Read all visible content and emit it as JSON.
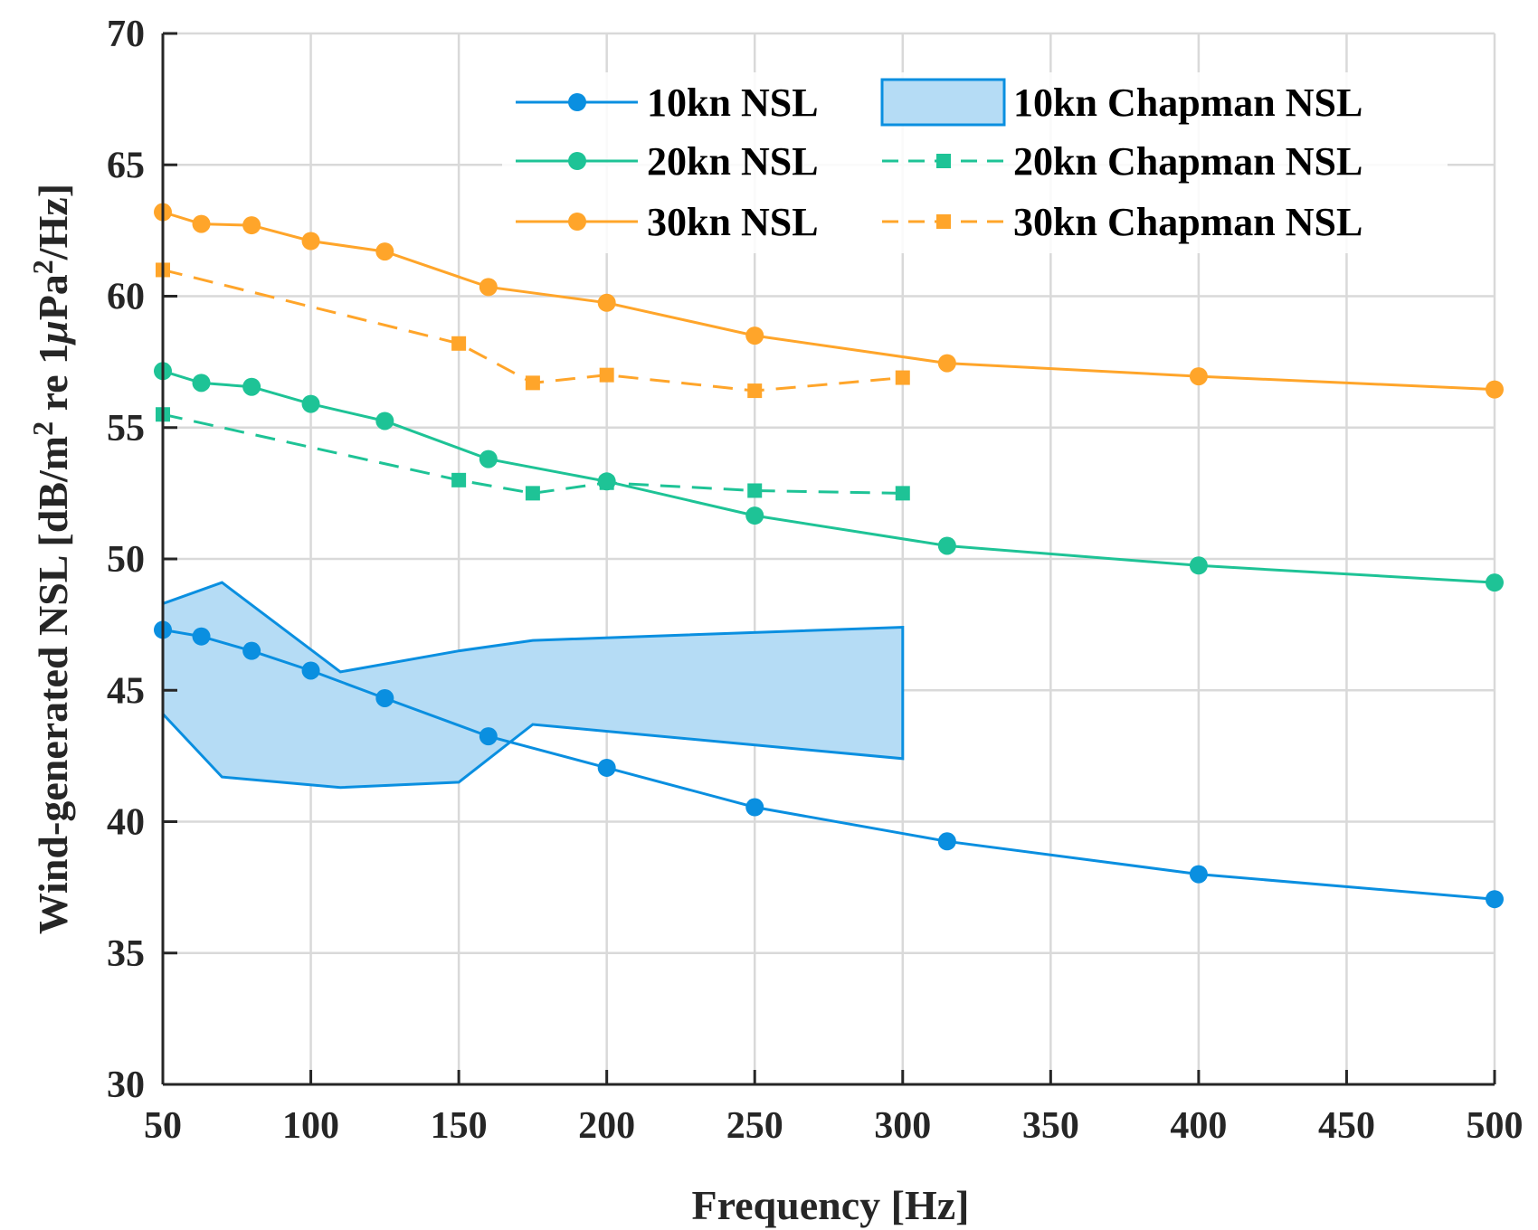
{
  "chart_data": {
    "type": "line",
    "xlabel": "Frequency [Hz]",
    "ylabel_parts": [
      "Wind-generated NSL [dB/m",
      "2",
      " re 1",
      "μ",
      "Pa",
      "2",
      "/Hz]"
    ],
    "xlim": [
      50,
      500
    ],
    "ylim": [
      30,
      70
    ],
    "xticks": [
      50,
      100,
      150,
      200,
      250,
      300,
      350,
      400,
      450,
      500
    ],
    "yticks": [
      30,
      35,
      40,
      45,
      50,
      55,
      60,
      65,
      70
    ],
    "grid": true,
    "legend_position": "top-right",
    "series": [
      {
        "name": "10kn NSL",
        "style": "solid-circle",
        "color": "#0a8fe0",
        "x": [
          50,
          63,
          80,
          100,
          125,
          160,
          200,
          250,
          315,
          400,
          500
        ],
        "y": [
          47.3,
          47.05,
          46.5,
          45.75,
          44.7,
          43.25,
          42.05,
          40.55,
          39.25,
          38.0,
          37.05
        ]
      },
      {
        "name": "20kn NSL",
        "style": "solid-circle",
        "color": "#1ec396",
        "x": [
          50,
          63,
          80,
          100,
          125,
          160,
          200,
          250,
          315,
          400,
          500
        ],
        "y": [
          57.15,
          56.7,
          56.55,
          55.9,
          55.25,
          53.8,
          52.95,
          51.65,
          50.5,
          49.75,
          49.1
        ]
      },
      {
        "name": "30kn NSL",
        "style": "solid-circle",
        "color": "#ffa52a",
        "x": [
          50,
          63,
          80,
          100,
          125,
          160,
          200,
          250,
          315,
          400,
          500
        ],
        "y": [
          63.2,
          62.75,
          62.7,
          62.1,
          61.7,
          60.35,
          59.75,
          58.5,
          57.45,
          56.95,
          56.45
        ]
      },
      {
        "name": "20kn Chapman NSL",
        "style": "dashed-square",
        "color": "#1ec396",
        "x": [
          50,
          150,
          175,
          200,
          250,
          300
        ],
        "y": [
          55.5,
          53.0,
          52.5,
          52.9,
          52.6,
          52.5
        ]
      },
      {
        "name": "30kn Chapman NSL",
        "style": "dashed-square",
        "color": "#ffa52a",
        "x": [
          50,
          150,
          175,
          200,
          250,
          300
        ],
        "y": [
          61.0,
          58.2,
          56.7,
          57.0,
          56.4,
          56.9
        ]
      }
    ],
    "band": {
      "name": "10kn Chapman NSL",
      "color": "#0a8fe0",
      "fill": "#b5dcf5",
      "upper": {
        "x": [
          50,
          70,
          110,
          150,
          175,
          300
        ],
        "y": [
          48.3,
          49.1,
          45.7,
          46.5,
          46.9,
          47.4
        ]
      },
      "lower": {
        "x": [
          50,
          70,
          110,
          150,
          175,
          300
        ],
        "y": [
          44.1,
          41.7,
          41.3,
          41.5,
          43.7,
          42.4
        ]
      }
    },
    "legend_order": [
      "10kn NSL",
      "10kn Chapman NSL",
      "20kn NSL",
      "20kn Chapman NSL",
      "30kn NSL",
      "30kn Chapman NSL"
    ]
  }
}
